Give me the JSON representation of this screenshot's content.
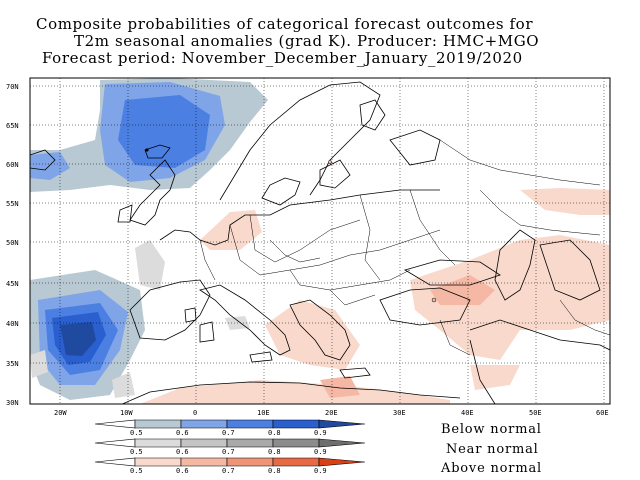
{
  "title": {
    "line1": "Composite probabilities of categorical forecast outcomes for",
    "line2": "T2m seasonal anomalies (grad K). Producer: HMC+MGO",
    "line3": "Forecast period: November_December_January_2019/2020"
  },
  "lat_labels": [
    "70N",
    "65N",
    "60N",
    "55N",
    "50N",
    "45N",
    "40N",
    "35N",
    "30N"
  ],
  "lon_labels": [
    "20W",
    "10W",
    "0",
    "10E",
    "20E",
    "30E",
    "40E",
    "50E",
    "60E"
  ],
  "scale_ticks": [
    "0.5",
    "0.6",
    "0.7",
    "0.8",
    "0.9"
  ],
  "legend": {
    "below": "Below normal",
    "near": "Near normal",
    "above": "Above normal"
  },
  "colors": {
    "below": [
      "#b8c9d3",
      "#7fa4e8",
      "#4b7fe2",
      "#2a5fd0",
      "#1f4aa0"
    ],
    "near": [
      "#dcdcdc",
      "#c4c4c4",
      "#a9a9a9",
      "#8c8c8c",
      "#6e6e6e"
    ],
    "above": [
      "#f9d9cc",
      "#f5b8a5",
      "#f09478",
      "#e86a45",
      "#d84018"
    ]
  }
}
